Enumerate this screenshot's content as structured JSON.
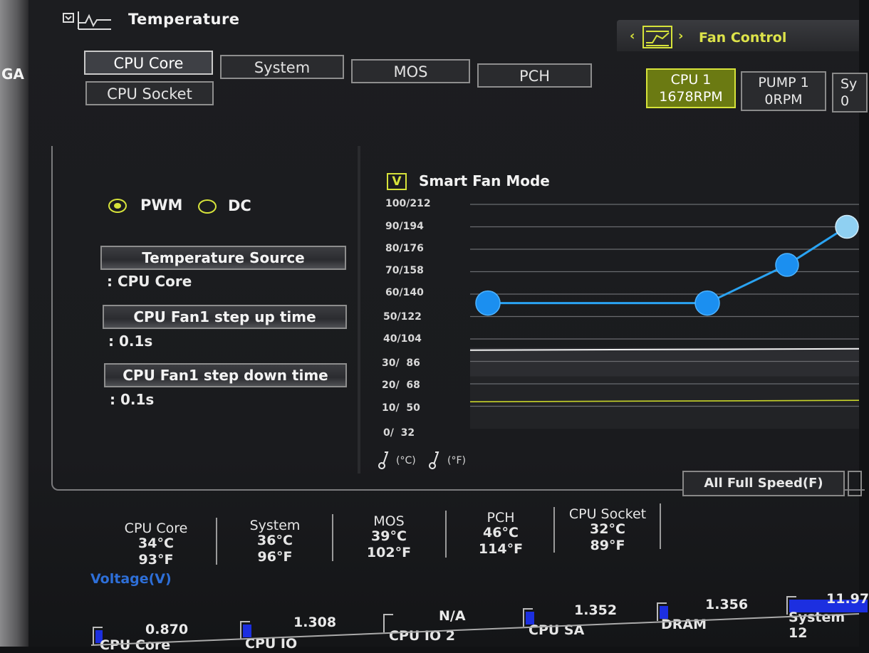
{
  "bezel": {
    "text": "GA"
  },
  "header": {
    "title": "Temperature"
  },
  "tabs": [
    {
      "label": "CPU Core",
      "active": true
    },
    {
      "label": "System",
      "active": false
    },
    {
      "label": "MOS",
      "active": false
    },
    {
      "label": "PCH",
      "active": false
    },
    {
      "label": "CPU Socket",
      "active": false
    }
  ],
  "fan_control": {
    "title": "Fan Control",
    "prev_icon": "chevron-left-icon",
    "next_icon": "chevron-right-icon",
    "fans": [
      {
        "name": "CPU 1",
        "speed": "1678RPM",
        "active": true
      },
      {
        "name": "PUMP 1",
        "speed": "0RPM",
        "active": false
      },
      {
        "name": "Sy",
        "speed": "0",
        "active": false
      }
    ]
  },
  "mode": {
    "pwm_label": "PWM",
    "dc_label": "DC",
    "selected": "PWM"
  },
  "settings": {
    "temp_source_label": "Temperature Source",
    "temp_source_value": ": CPU Core",
    "step_up_label": "CPU Fan1 step up time",
    "step_up_value": ": 0.1s",
    "step_down_label": "CPU Fan1 step down time",
    "step_down_value": ": 0.1s"
  },
  "smart_fan": {
    "label": "Smart Fan Mode",
    "checked": true,
    "check_glyph": "V"
  },
  "chart_data": {
    "type": "line",
    "ytick_labels": [
      "100/212",
      "90/194",
      "80/176",
      "70/158",
      "60/140",
      "50/122",
      "40/104",
      "30/  86",
      "20/  68",
      "10/  50",
      "0/  32"
    ],
    "unit_c": "(°C)",
    "unit_f": "(°F)",
    "ylim": [
      0,
      100
    ],
    "curve_points": [
      {
        "temp": 0,
        "speed": 56
      },
      {
        "temp": 55,
        "speed": 56
      },
      {
        "temp": 75,
        "speed": 73
      },
      {
        "temp": 90,
        "speed": 90
      }
    ],
    "temperature_line": 35,
    "fan_speed_line": 12,
    "colors": {
      "curve": "#2aa3f2",
      "temp_line": "#f2f2f2",
      "speed_line": "#c8d42a"
    }
  },
  "full_speed": {
    "label": "All Full Speed(F)"
  },
  "temperatures": [
    {
      "name": "CPU Core",
      "c": "34°C",
      "f": "93°F"
    },
    {
      "name": "System",
      "c": "36°C",
      "f": "96°F"
    },
    {
      "name": "MOS",
      "c": "39°C",
      "f": "102°F"
    },
    {
      "name": "PCH",
      "c": "46°C",
      "f": "114°F"
    },
    {
      "name": "CPU Socket",
      "c": "32°C",
      "f": "89°F"
    }
  ],
  "voltage": {
    "title": "Voltage(V)",
    "items": [
      {
        "name": "CPU Core",
        "value": "0.870",
        "level": 0.07
      },
      {
        "name": "CPU IO",
        "value": "1.308",
        "level": 0.11
      },
      {
        "name": "CPU IO 2",
        "value": "N/A",
        "level": 0
      },
      {
        "name": "CPU SA",
        "value": "1.352",
        "level": 0.11
      },
      {
        "name": "DRAM",
        "value": "1.356",
        "level": 0.11
      },
      {
        "name": "System 12",
        "value": "11.97",
        "level": 1.0
      }
    ]
  }
}
